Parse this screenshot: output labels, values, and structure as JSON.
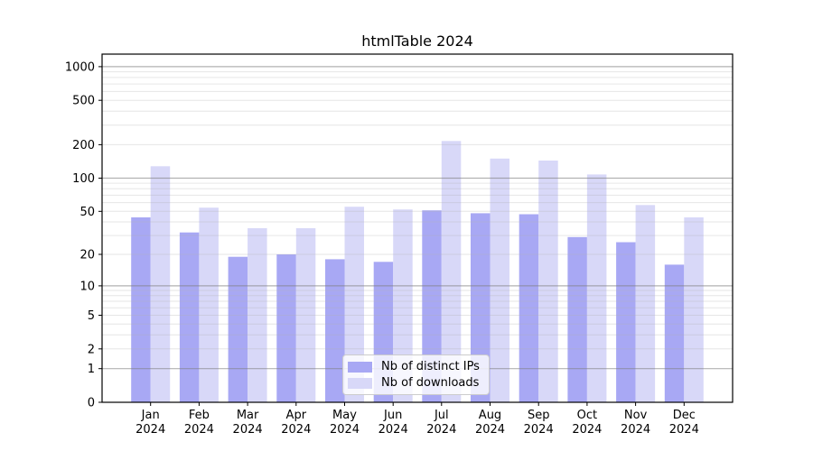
{
  "figure": {
    "title": "htmlTable 2024",
    "background_color": "#ffffff"
  },
  "chart_data": {
    "type": "bar",
    "title": "htmlTable 2024",
    "xlabel": "",
    "ylabel": "",
    "categories": [
      "Jan",
      "Feb",
      "Mar",
      "Apr",
      "May",
      "Jun",
      "Jul",
      "Aug",
      "Sep",
      "Oct",
      "Nov",
      "Dec"
    ],
    "x_tick_year": "2024",
    "series": [
      {
        "name": "Nb of distinct IPs",
        "color": "#a8a8f4",
        "values": [
          44,
          32,
          19,
          20,
          18,
          17,
          51,
          48,
          47,
          29,
          26,
          16
        ]
      },
      {
        "name": "Nb of downloads",
        "color": "#d8d8f8",
        "values": [
          128,
          54,
          35,
          35,
          55,
          52,
          216,
          150,
          144,
          108,
          57,
          44
        ]
      }
    ],
    "y_axis": {
      "scale": "log1p",
      "ticks": [
        0,
        1,
        2,
        5,
        10,
        20,
        50,
        100,
        200,
        500,
        1000
      ],
      "range": [
        0,
        1300
      ]
    },
    "grid": {
      "on": true,
      "drawn_above_bars": true,
      "major_lines": [
        1,
        10,
        100,
        1000
      ],
      "minor_lines": [
        2,
        3,
        4,
        5,
        6,
        7,
        8,
        9,
        20,
        30,
        40,
        50,
        60,
        70,
        80,
        90,
        200,
        300,
        400,
        500,
        600,
        700,
        800,
        900
      ],
      "major_color": "#7f7f7f",
      "minor_color": "#b0b0b0"
    },
    "legend": {
      "position": "lower center",
      "entries": [
        "Nb of distinct IPs",
        "Nb of downloads"
      ]
    },
    "axis_color": "#000000",
    "text_color": "#000000"
  }
}
